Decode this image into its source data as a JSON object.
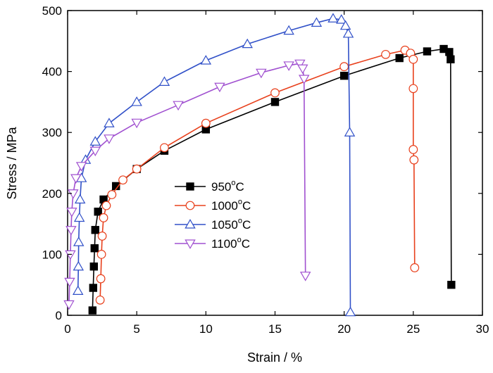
{
  "chart_data": {
    "type": "line",
    "xlabel": "Strain / %",
    "ylabel": "Stress / MPa",
    "xlim": [
      0,
      30
    ],
    "ylim": [
      0,
      500
    ],
    "xticks": [
      "0",
      "5",
      "10",
      "15",
      "20",
      "25",
      "30"
    ],
    "yticks": [
      "0",
      "100",
      "200",
      "300",
      "400",
      "500"
    ],
    "legend_position": "center-left",
    "series": [
      {
        "name": "950",
        "unit": "C",
        "sup": "o",
        "color": "#000000",
        "marker": "square-filled",
        "x": [
          1.8,
          1.85,
          1.9,
          1.95,
          2.0,
          2.2,
          2.6,
          3.5,
          5,
          7,
          10,
          15,
          20,
          24,
          26,
          27.2,
          27.6,
          27.7,
          27.75
        ],
        "y": [
          8,
          45,
          80,
          110,
          140,
          170,
          190,
          212,
          240,
          270,
          305,
          350,
          393,
          422,
          433,
          437,
          432,
          420,
          50
        ]
      },
      {
        "name": "1000",
        "unit": "C",
        "sup": "o",
        "color": "#e8401c",
        "marker": "circle-open",
        "x": [
          2.35,
          2.4,
          2.45,
          2.5,
          2.6,
          2.8,
          3.2,
          4,
          5,
          7,
          10,
          15,
          20,
          23,
          24.4,
          24.8,
          25.0,
          25.0,
          25.0,
          25.05,
          25.1
        ],
        "y": [
          25,
          60,
          100,
          130,
          160,
          180,
          198,
          222,
          240,
          275,
          315,
          365,
          408,
          428,
          435,
          430,
          420,
          372,
          272,
          255,
          78
        ]
      },
      {
        "name": "1050",
        "unit": "C",
        "sup": "o",
        "color": "#3050c8",
        "marker": "triangle-up-open",
        "x": [
          0.75,
          0.78,
          0.8,
          0.85,
          0.9,
          1.0,
          1.3,
          2,
          3,
          5,
          7,
          10,
          13,
          16,
          18,
          19.2,
          19.8,
          20.1,
          20.3,
          20.4,
          20.45
        ],
        "y": [
          40,
          80,
          120,
          160,
          190,
          225,
          255,
          285,
          315,
          350,
          383,
          418,
          445,
          467,
          480,
          487,
          485,
          475,
          462,
          300,
          5
        ]
      },
      {
        "name": "1100",
        "unit": "C",
        "sup": "o",
        "color": "#a050d0",
        "marker": "triangle-down-open",
        "x": [
          0.1,
          0.15,
          0.2,
          0.25,
          0.3,
          0.4,
          0.6,
          1.0,
          2,
          3,
          5,
          8,
          11,
          14,
          16,
          16.8,
          17.0,
          17.1,
          17.2
        ],
        "y": [
          18,
          55,
          100,
          140,
          170,
          200,
          225,
          245,
          270,
          290,
          316,
          345,
          375,
          398,
          410,
          413,
          405,
          388,
          65
        ]
      }
    ]
  }
}
